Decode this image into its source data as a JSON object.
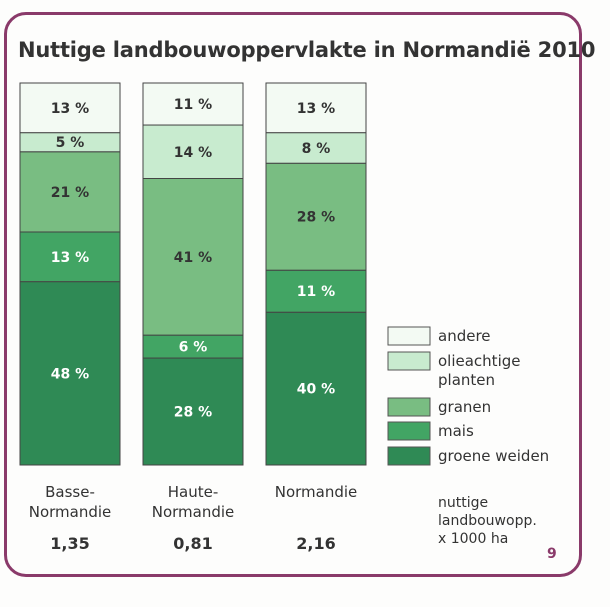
{
  "page_number": "9",
  "chart_data": {
    "type": "bar",
    "stacked": true,
    "title": "Nuttige landbouwoppervlakte in Normandië 2010",
    "categories": [
      "Basse-\nNormandie",
      "Haute-\nNormandie",
      "Normandie"
    ],
    "category_lines": [
      [
        "Basse-",
        "Normandie"
      ],
      [
        "Haute-",
        "Normandie"
      ],
      [
        "Normandie"
      ]
    ],
    "totals": [
      "1,35",
      "0,81",
      "2,16"
    ],
    "totals_label": [
      "nuttige",
      "landbouwopp.",
      "x 1000 ha"
    ],
    "ylim": [
      0,
      100
    ],
    "unit": "%",
    "series": [
      {
        "name": "groene weiden",
        "color": "#2f8a55",
        "label_color": "#ffffff",
        "values": [
          48,
          28,
          40
        ]
      },
      {
        "name": "mais",
        "color": "#42a564",
        "label_color": "#ffffff",
        "values": [
          13,
          6,
          11
        ]
      },
      {
        "name": "granen",
        "color": "#79bd82",
        "label_color": "#333333",
        "values": [
          21,
          41,
          28
        ]
      },
      {
        "name": "olieachtige planten",
        "color": "#c8ebcf",
        "label_color": "#333333",
        "values": [
          5,
          14,
          8
        ]
      },
      {
        "name": "andere",
        "color": "#f3faf3",
        "label_color": "#333333",
        "values": [
          13,
          11,
          13
        ]
      }
    ],
    "legend": {
      "position": "right",
      "entries": [
        {
          "lines": [
            "andere"
          ],
          "series": "andere"
        },
        {
          "lines": [
            "olieachtige",
            "planten"
          ],
          "series": "olieachtige planten"
        },
        {
          "lines": [
            "granen"
          ],
          "series": "granen"
        },
        {
          "lines": [
            "mais"
          ],
          "series": "mais"
        },
        {
          "lines": [
            "groene weiden"
          ],
          "series": "groene weiden"
        }
      ]
    }
  }
}
